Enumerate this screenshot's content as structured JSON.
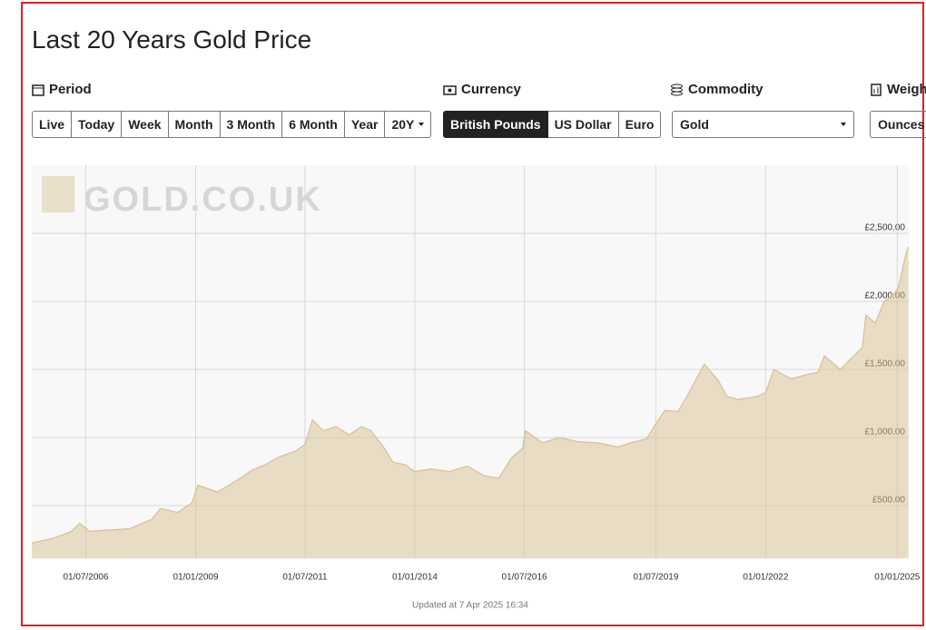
{
  "title": "Last 20 Years Gold Price",
  "period": {
    "label": "Period",
    "buttons": [
      "Live",
      "Today",
      "Week",
      "Month",
      "3 Month",
      "6 Month",
      "Year",
      "20Y"
    ]
  },
  "currency": {
    "label": "Currency",
    "buttons": [
      "British Pounds",
      "US Dollar",
      "Euro"
    ]
  },
  "commodity": {
    "label": "Commodity",
    "value": "Gold"
  },
  "weight": {
    "label": "Weight",
    "value": "Ounces"
  },
  "chart_data": {
    "type": "area",
    "watermark": "GOLD.CO.UK",
    "footnote": "Updated at 7 Apr 2025 16:34",
    "x": [
      "2005-04-07",
      "2005-10-01",
      "2006-03-01",
      "2006-05-12",
      "2006-08-01",
      "2007-01-01",
      "2007-07-01",
      "2008-01-01",
      "2008-03-15",
      "2008-08-01",
      "2008-12-01",
      "2009-01-20",
      "2009-07-01",
      "2009-12-01",
      "2010-04-15",
      "2010-08-01",
      "2010-12-01",
      "2011-04-15",
      "2011-07-01",
      "2011-09-01",
      "2011-12-01",
      "2012-03-15",
      "2012-07-01",
      "2012-10-15",
      "2013-01-01",
      "2013-04-15",
      "2013-07-01",
      "2013-10-15",
      "2014-01-01",
      "2014-05-15",
      "2014-10-15",
      "2015-03-15",
      "2015-08-01",
      "2015-12-01",
      "2016-03-15",
      "2016-06-15",
      "2016-07-10",
      "2016-12-01",
      "2017-04-15",
      "2017-09-15",
      "2018-03-15",
      "2018-08-15",
      "2018-12-01",
      "2019-04-15",
      "2019-07-01",
      "2019-09-15",
      "2020-01-01",
      "2020-03-15",
      "2020-08-07",
      "2020-12-01",
      "2021-02-15",
      "2021-05-15",
      "2021-10-15",
      "2022-01-01",
      "2022-03-10",
      "2022-08-01",
      "2022-12-01",
      "2023-03-15",
      "2023-05-05",
      "2023-09-15",
      "2023-12-01",
      "2024-03-15",
      "2024-04-15",
      "2024-07-01",
      "2024-09-15",
      "2024-12-01",
      "2025-01-10",
      "2025-03-15",
      "2025-04-04"
    ],
    "series": [
      {
        "name": "Gold",
        "color": "#d9bf8f",
        "values": [
          225,
          260,
          310,
          370,
          310,
          320,
          330,
          400,
          480,
          450,
          520,
          650,
          600,
          680,
          760,
          800,
          860,
          900,
          950,
          1130,
          1050,
          1080,
          1020,
          1080,
          1050,
          930,
          820,
          800,
          750,
          770,
          750,
          790,
          720,
          700,
          850,
          920,
          1050,
          960,
          1000,
          970,
          960,
          930,
          960,
          990,
          1100,
          1200,
          1190,
          1300,
          1540,
          1420,
          1300,
          1280,
          1300,
          1330,
          1500,
          1430,
          1460,
          1480,
          1600,
          1500,
          1570,
          1660,
          1900,
          1840,
          2000,
          2050,
          2100,
          2350,
          2400
        ]
      }
    ],
    "xlim": [
      "2005-04-07",
      "2025-04-07"
    ],
    "xticks": [
      {
        "value": "2006-07-01",
        "label": "01/07/2006"
      },
      {
        "value": "2009-01-01",
        "label": "01/01/2009"
      },
      {
        "value": "2011-07-01",
        "label": "01/07/2011"
      },
      {
        "value": "2014-01-01",
        "label": "01/01/2014"
      },
      {
        "value": "2016-07-01",
        "label": "01/07/2016"
      },
      {
        "value": "2019-07-01",
        "label": "01/07/2019"
      },
      {
        "value": "2022-01-01",
        "label": "01/01/2022"
      },
      {
        "value": "2025-01-01",
        "label": "01/01/2025"
      }
    ],
    "ylim": [
      113,
      3000
    ],
    "yticks": [
      {
        "value": 500,
        "label": "£500.00"
      },
      {
        "value": 1000,
        "label": "£1,000.00"
      },
      {
        "value": 1500,
        "label": "£1,500.00"
      },
      {
        "value": 2000,
        "label": "£2,000.00"
      },
      {
        "value": 2500,
        "label": "£2,500.00"
      }
    ],
    "grid": true
  }
}
